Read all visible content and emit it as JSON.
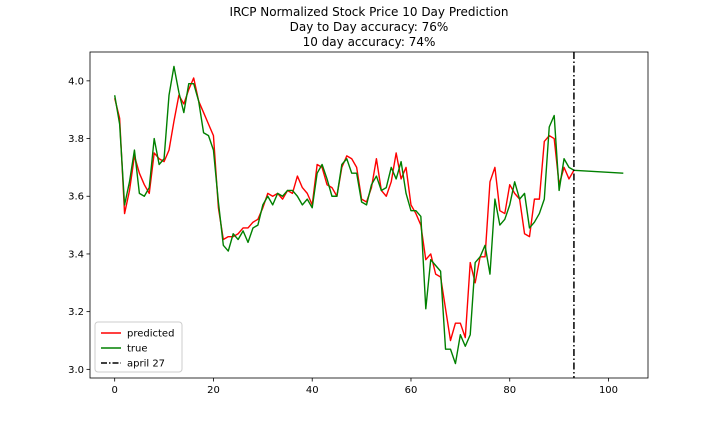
{
  "chart_data": {
    "type": "line",
    "title_lines": [
      "IRCP Normalized Stock Price 10 Day Prediction",
      "Day to Day accuracy: 76%",
      "10 day accuracy: 74%"
    ],
    "xlabel": "",
    "ylabel": "",
    "xlim": [
      -5,
      108
    ],
    "ylim": [
      2.97,
      4.1
    ],
    "xticks": [
      0,
      20,
      40,
      60,
      80,
      100
    ],
    "yticks": [
      3.0,
      3.2,
      3.4,
      3.6,
      3.8,
      4.0
    ],
    "ytick_labels": [
      "3.0",
      "3.2",
      "3.4",
      "3.6",
      "3.8",
      "4.0"
    ],
    "grid": false,
    "legend_position": "lower-left",
    "series": [
      {
        "name": "predicted",
        "color": "#ff0000",
        "style": "solid",
        "x": [
          0,
          1,
          2,
          3,
          4,
          5,
          6,
          7,
          8,
          9,
          10,
          11,
          12,
          13,
          14,
          15,
          16,
          17,
          18,
          19,
          20,
          21,
          22,
          23,
          24,
          25,
          26,
          27,
          28,
          29,
          30,
          31,
          32,
          33,
          34,
          35,
          36,
          37,
          38,
          39,
          40,
          41,
          42,
          43,
          44,
          45,
          46,
          47,
          48,
          49,
          50,
          51,
          52,
          53,
          54,
          55,
          56,
          57,
          58,
          59,
          60,
          61,
          62,
          63,
          64,
          65,
          66,
          67,
          68,
          69,
          70,
          71,
          72,
          73,
          74,
          75,
          76,
          77,
          78,
          79,
          80,
          81,
          82,
          83,
          84,
          85,
          86,
          87,
          88,
          89,
          90,
          91,
          92,
          93
        ],
        "y": [
          3.94,
          3.87,
          3.54,
          3.62,
          3.74,
          3.68,
          3.64,
          3.61,
          3.75,
          3.73,
          3.72,
          3.76,
          3.86,
          3.95,
          3.92,
          3.97,
          4.01,
          3.93,
          3.89,
          3.85,
          3.81,
          3.56,
          3.45,
          3.46,
          3.46,
          3.47,
          3.49,
          3.49,
          3.51,
          3.52,
          3.56,
          3.61,
          3.6,
          3.61,
          3.59,
          3.62,
          3.61,
          3.67,
          3.63,
          3.61,
          3.57,
          3.71,
          3.7,
          3.64,
          3.63,
          3.6,
          3.7,
          3.74,
          3.73,
          3.7,
          3.59,
          3.58,
          3.63,
          3.73,
          3.62,
          3.6,
          3.65,
          3.75,
          3.66,
          3.7,
          3.57,
          3.54,
          3.5,
          3.38,
          3.4,
          3.33,
          3.32,
          3.21,
          3.1,
          3.16,
          3.16,
          3.11,
          3.37,
          3.3,
          3.39,
          3.39,
          3.65,
          3.7,
          3.55,
          3.54,
          3.64,
          3.61,
          3.59,
          3.47,
          3.46,
          3.59,
          3.59,
          3.79,
          3.81,
          3.8,
          3.64,
          3.7,
          3.66,
          3.69
        ]
      },
      {
        "name": "true",
        "color": "#008000",
        "style": "solid",
        "x": [
          0,
          1,
          2,
          3,
          4,
          5,
          6,
          7,
          8,
          9,
          10,
          11,
          12,
          13,
          14,
          15,
          16,
          17,
          18,
          19,
          20,
          21,
          22,
          23,
          24,
          25,
          26,
          27,
          28,
          29,
          30,
          31,
          32,
          33,
          34,
          35,
          36,
          37,
          38,
          39,
          40,
          41,
          42,
          43,
          44,
          45,
          46,
          47,
          48,
          49,
          50,
          51,
          52,
          53,
          54,
          55,
          56,
          57,
          58,
          59,
          60,
          61,
          62,
          63,
          64,
          65,
          66,
          67,
          68,
          69,
          70,
          71,
          72,
          73,
          74,
          75,
          76,
          77,
          78,
          79,
          80,
          81,
          82,
          83,
          84,
          85,
          86,
          87,
          88,
          89,
          90,
          91,
          92,
          93,
          103
        ],
        "y": [
          3.95,
          3.85,
          3.57,
          3.65,
          3.76,
          3.61,
          3.6,
          3.63,
          3.8,
          3.71,
          3.73,
          3.95,
          4.05,
          3.96,
          3.89,
          3.99,
          3.99,
          3.93,
          3.82,
          3.81,
          3.76,
          3.58,
          3.43,
          3.41,
          3.47,
          3.45,
          3.48,
          3.44,
          3.49,
          3.5,
          3.57,
          3.6,
          3.57,
          3.61,
          3.6,
          3.62,
          3.62,
          3.6,
          3.57,
          3.59,
          3.56,
          3.68,
          3.71,
          3.66,
          3.6,
          3.6,
          3.71,
          3.73,
          3.68,
          3.68,
          3.58,
          3.57,
          3.64,
          3.67,
          3.62,
          3.63,
          3.7,
          3.66,
          3.72,
          3.61,
          3.55,
          3.55,
          3.53,
          3.21,
          3.38,
          3.36,
          3.34,
          3.07,
          3.07,
          3.02,
          3.12,
          3.08,
          3.12,
          3.37,
          3.39,
          3.43,
          3.33,
          3.59,
          3.5,
          3.52,
          3.57,
          3.65,
          3.59,
          3.61,
          3.49,
          3.51,
          3.54,
          3.59,
          3.84,
          3.88,
          3.62,
          3.73,
          3.7,
          3.69,
          3.68
        ]
      },
      {
        "name": "april 27",
        "color": "#000000",
        "style": "dashdot",
        "vertical_x": 93
      }
    ]
  }
}
